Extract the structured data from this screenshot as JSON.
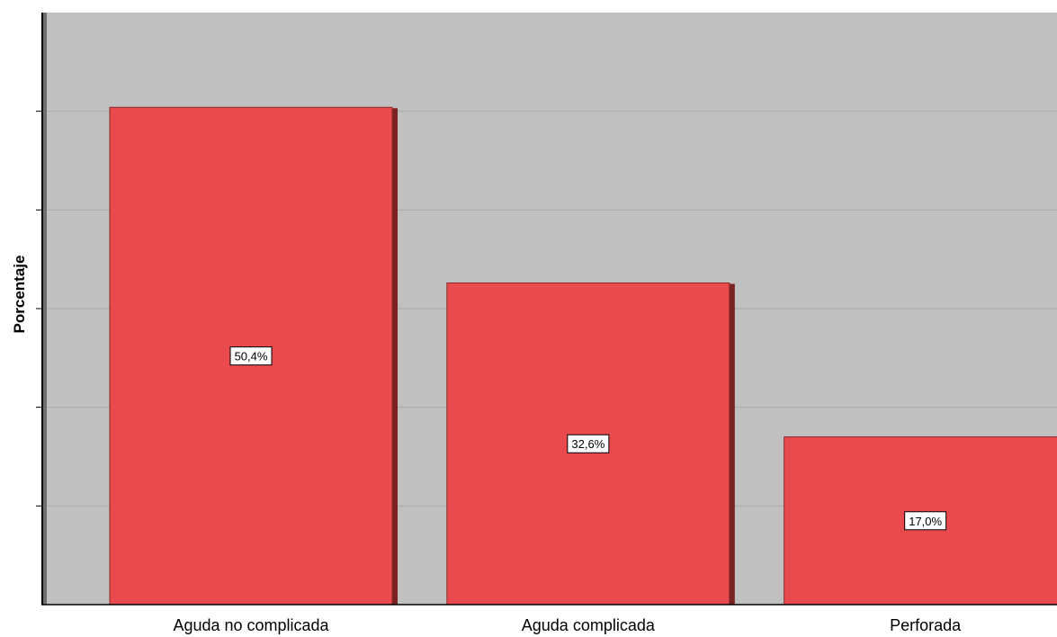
{
  "chart_data": {
    "type": "bar",
    "categories": [
      "Aguda no complicada",
      "Aguda complicada",
      "Perforada"
    ],
    "values": [
      50.4,
      32.6,
      17.0
    ],
    "data_labels": [
      "50,4%",
      "32,6%",
      "17,0%"
    ],
    "title": "",
    "xlabel": "",
    "ylabel": "Porcentaje",
    "ylim": [
      0,
      60
    ],
    "grid": true,
    "colors": {
      "bar_fill": "#e84a4e",
      "bar_shadow": "#7a2220",
      "plot_bg": "#c0c0c0",
      "grid": "#a9a9a9"
    }
  }
}
